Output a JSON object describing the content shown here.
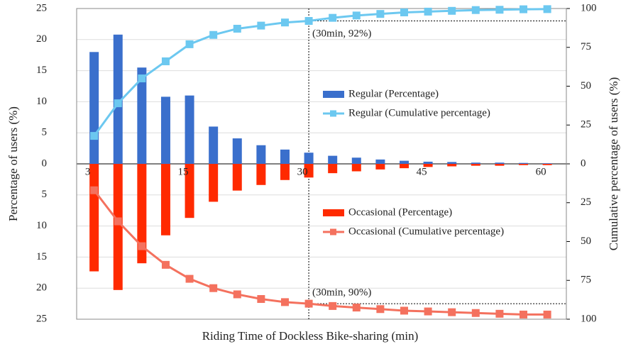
{
  "chart_data": {
    "type": "bar-line",
    "x_label": "Riding Time of Dockless Bike-sharing (min)",
    "y_label": "Percentage of users (%)",
    "y2_label": "Cumulative percentage of users (%)",
    "x": [
      3,
      6,
      9,
      12,
      15,
      18,
      21,
      24,
      27,
      30,
      33,
      36,
      39,
      42,
      45,
      48,
      51,
      54,
      57,
      60
    ],
    "xlim": [
      0.8,
      62.4
    ],
    "xticks": [
      3,
      15,
      30,
      45,
      60
    ],
    "ylim": [
      -25,
      25
    ],
    "yticks": [
      {
        "value": -25,
        "label": "25"
      },
      {
        "value": -20,
        "label": "20"
      },
      {
        "value": -15,
        "label": "15"
      },
      {
        "value": -10,
        "label": "10"
      },
      {
        "value": -5,
        "label": "5"
      },
      0,
      5,
      10,
      15,
      20,
      25
    ],
    "y2lim": [
      -100,
      100
    ],
    "y2ticks": [
      {
        "value": -100,
        "label": "100"
      },
      {
        "value": -75,
        "label": "75"
      },
      {
        "value": -50,
        "label": "50"
      },
      {
        "value": -25,
        "label": "25"
      },
      0,
      25,
      50,
      75,
      100
    ],
    "grid": true,
    "series": [
      {
        "name": "Regular (Percentage)",
        "kind": "bar",
        "color": "#3a6fcc",
        "values": [
          18,
          20.8,
          15.5,
          10.8,
          11,
          6,
          4.1,
          3,
          2.3,
          1.8,
          1.3,
          1.0,
          0.7,
          0.5,
          0.35,
          0.3,
          0.2,
          0.2,
          0.15,
          0.1
        ]
      },
      {
        "name": "Regular (Cumulative percentage)",
        "kind": "line",
        "axis": "y2",
        "color": "#6cc8f0",
        "values": [
          18,
          39,
          55,
          66,
          77,
          83,
          87,
          89,
          91,
          92,
          94,
          95.5,
          96.5,
          97.5,
          98,
          98.5,
          99,
          99.2,
          99.5,
          99.6
        ]
      },
      {
        "name": "Occasional (Percentage)",
        "kind": "bar",
        "color": "#ff2a00",
        "values": [
          -17.3,
          -20.3,
          -16,
          -11.5,
          -8.7,
          -6.1,
          -4.3,
          -3.4,
          -2.6,
          -2.2,
          -1.5,
          -1.2,
          -0.9,
          -0.7,
          -0.5,
          -0.4,
          -0.3,
          -0.3,
          -0.2,
          -0.2
        ]
      },
      {
        "name": "Occasional (Cumulative percentage)",
        "kind": "line",
        "axis": "y2",
        "color": "#f4715e",
        "values": [
          -17,
          -37,
          -53,
          -65,
          -74,
          -80,
          -84,
          -87,
          -89,
          -90,
          -91.5,
          -92.5,
          -93.5,
          -94.5,
          -95,
          -95.5,
          -96,
          -96.5,
          -97,
          -97
        ]
      }
    ],
    "annotations": [
      "(30min, 92%)",
      "(30min, 90%)"
    ]
  }
}
